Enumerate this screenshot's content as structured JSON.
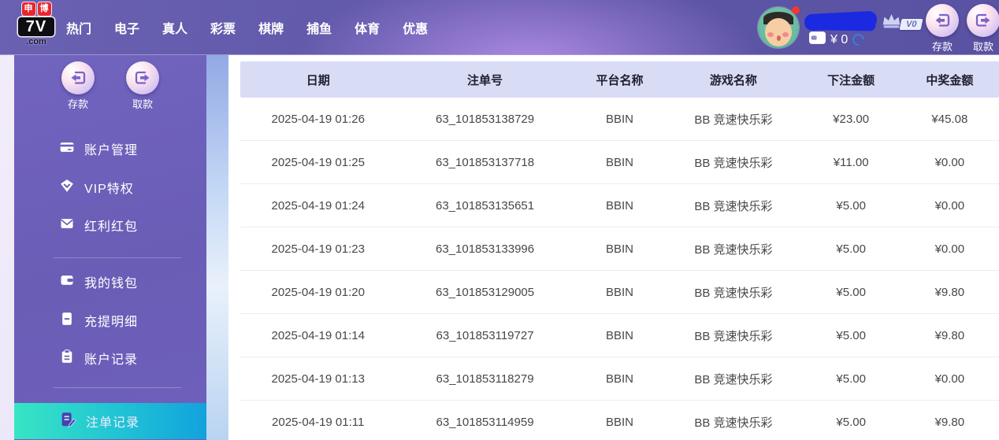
{
  "brand": {
    "logo_top_left": "申",
    "logo_top_right": "博",
    "logo_main": "7V",
    "logo_suffix": ".com"
  },
  "nav": {
    "items": [
      "热门",
      "电子",
      "真人",
      "彩票",
      "棋牌",
      "捕鱼",
      "体育",
      "优惠"
    ]
  },
  "user": {
    "balance": "¥ 0",
    "vip_badge": "V0"
  },
  "header_actions": {
    "deposit": "存款",
    "withdraw": "取款"
  },
  "sidebar": {
    "deposit": "存款",
    "withdraw": "取款",
    "items": [
      {
        "label": "账户管理",
        "icon": "credit-card-icon"
      },
      {
        "label": "VIP特权",
        "icon": "vip-gem-icon"
      },
      {
        "label": "红利红包",
        "icon": "red-packet-icon"
      },
      {
        "label": "我的钱包",
        "icon": "wallet-icon"
      },
      {
        "label": "充提明细",
        "icon": "statement-icon"
      },
      {
        "label": "账户记录",
        "icon": "clipboard-icon"
      },
      {
        "label": "注单记录",
        "icon": "bet-record-icon"
      }
    ],
    "active_item": "注单记录"
  },
  "table": {
    "headers": [
      "日期",
      "注单号",
      "平台名称",
      "游戏名称",
      "下注金额",
      "中奖金额"
    ],
    "rows": [
      [
        "2025-04-19 01:26",
        "63_101853138729",
        "BBIN",
        "BB 竞速快乐彩",
        "¥23.00",
        "¥45.08"
      ],
      [
        "2025-04-19 01:25",
        "63_101853137718",
        "BBIN",
        "BB 竞速快乐彩",
        "¥11.00",
        "¥0.00"
      ],
      [
        "2025-04-19 01:24",
        "63_101853135651",
        "BBIN",
        "BB 竞速快乐彩",
        "¥5.00",
        "¥0.00"
      ],
      [
        "2025-04-19 01:23",
        "63_101853133996",
        "BBIN",
        "BB 竞速快乐彩",
        "¥5.00",
        "¥0.00"
      ],
      [
        "2025-04-19 01:20",
        "63_101853129005",
        "BBIN",
        "BB 竞速快乐彩",
        "¥5.00",
        "¥9.80"
      ],
      [
        "2025-04-19 01:14",
        "63_101853119727",
        "BBIN",
        "BB 竞速快乐彩",
        "¥5.00",
        "¥9.80"
      ],
      [
        "2025-04-19 01:13",
        "63_101853118279",
        "BBIN",
        "BB 竞速快乐彩",
        "¥5.00",
        "¥0.00"
      ],
      [
        "2025-04-19 01:11",
        "63_101853114959",
        "BBIN",
        "BB 竞速快乐彩",
        "¥5.00",
        "¥9.80"
      ]
    ]
  },
  "colors": {
    "nav_purple": "#5f57a8",
    "sidebar_purple": "#6a5db6",
    "active_gradient_from": "#38e5c4",
    "active_gradient_to": "#12a2dd",
    "table_header_bg": "#d9dcf5",
    "brand_red": "#e8262d",
    "balance_refresh_blue": "#3a7ce0"
  }
}
